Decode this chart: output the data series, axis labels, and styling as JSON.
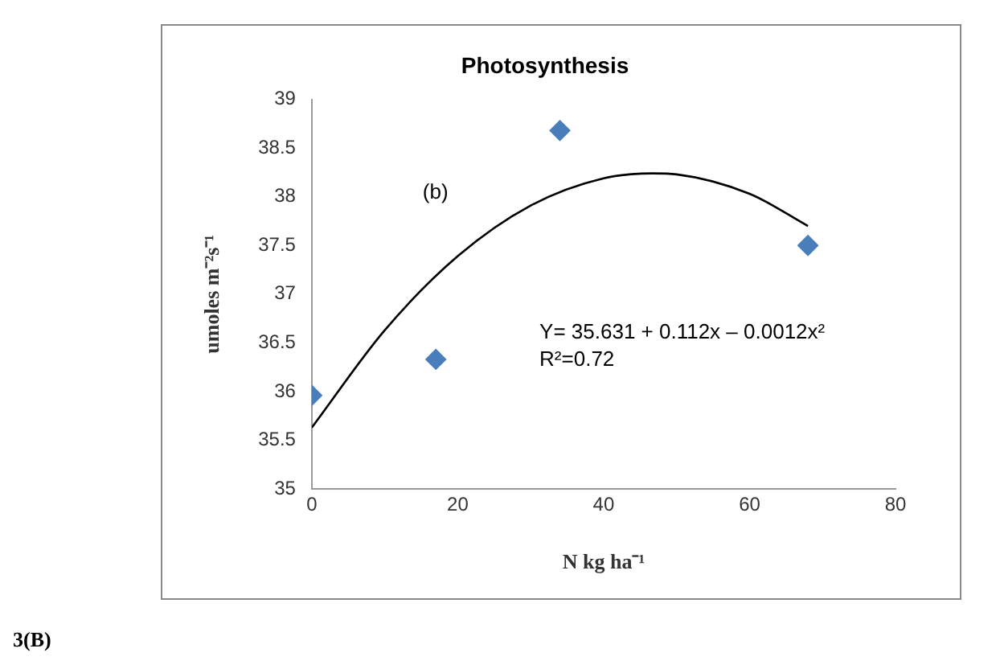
{
  "chart_data": {
    "type": "scatter",
    "title": "Photosynthesis",
    "xlabel": "N kg ha⁻¹",
    "ylabel": "umoles m⁻²s⁻¹",
    "xlim": [
      0,
      80
    ],
    "xticks": [
      0,
      20,
      40,
      60,
      80
    ],
    "ylim": [
      35,
      39
    ],
    "yticks": [
      35,
      35.5,
      36,
      36.5,
      37,
      37.5,
      38,
      38.5,
      39
    ],
    "grid": false,
    "legend": false,
    "series": [
      {
        "type": "scatter",
        "color": "#4a7ebb",
        "marker": "diamond",
        "x": [
          0,
          17,
          34,
          68
        ],
        "values": [
          35.96,
          36.33,
          38.68,
          37.5
        ]
      },
      {
        "type": "line",
        "color": "#000000",
        "marker": "none",
        "x": [
          0,
          10,
          20,
          30,
          40,
          46.7,
          50,
          60,
          68
        ],
        "values": [
          35.63,
          36.63,
          37.39,
          37.91,
          38.19,
          38.24,
          38.23,
          38.03,
          37.7
        ]
      }
    ],
    "annotations": [
      "(b)",
      "Y= 35.631 + 0.112x – 0.0012x²",
      "R²=0.72",
      "3(B)"
    ]
  }
}
